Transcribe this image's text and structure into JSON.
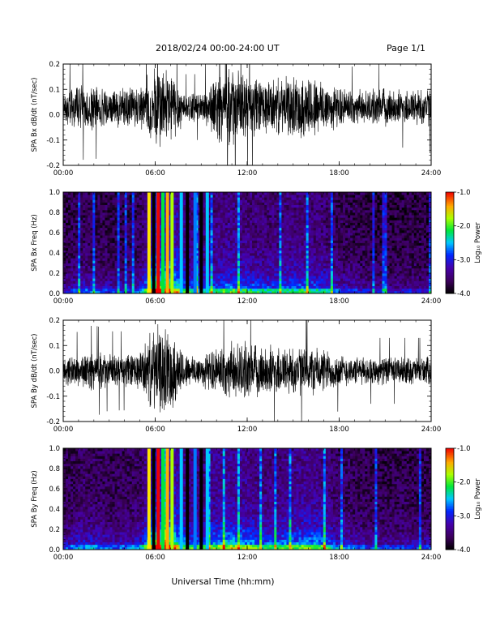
{
  "header": {
    "title": "2018/02/24  00:00-24:00 UT",
    "page": "Page 1/1"
  },
  "chart_data": [
    {
      "type": "line",
      "ylabel": "SPA Bx dB/dt (nT/sec)",
      "ylim": [
        -0.2,
        0.2
      ],
      "yticks": [
        "0.2",
        "0.1",
        "0.0",
        "-0.1",
        "-0.2"
      ],
      "xlim": [
        "00:00",
        "24:00"
      ],
      "xticks": [
        "00:00",
        "06:00",
        "12:00",
        "18:00",
        "24:00"
      ],
      "note": "dense noise-like time series centred on ~0.03, amplitude envelope by hour",
      "envelope_hours": [
        0,
        1,
        2,
        3,
        4,
        5,
        6,
        7,
        8,
        9,
        10,
        11,
        12,
        13,
        14,
        15,
        16,
        17,
        18,
        19,
        20,
        21,
        22,
        23,
        24
      ],
      "envelope_values": [
        0.06,
        0.08,
        0.08,
        0.07,
        0.07,
        0.08,
        0.16,
        0.14,
        0.05,
        0.05,
        0.12,
        0.14,
        0.12,
        0.1,
        0.1,
        0.11,
        0.12,
        0.1,
        0.07,
        0.06,
        0.06,
        0.07,
        0.06,
        0.07,
        0.07
      ],
      "baseline": 0.03
    },
    {
      "type": "heatmap",
      "ylabel": "SPA Bx Freq (Hz)",
      "ylim": [
        0.0,
        1.0
      ],
      "yticks": [
        "1.0",
        "0.8",
        "0.6",
        "0.4",
        "0.2",
        "0.0"
      ],
      "xlim": [
        "00:00",
        "24:00"
      ],
      "xticks": [
        "00:00",
        "06:00",
        "12:00",
        "18:00",
        "24:00"
      ],
      "colorbar_label": "Log₁₀ Power",
      "colorbar_range": [
        -4.0,
        -1.0
      ],
      "colorbar_ticks": [
        "-1.0",
        "-2.0",
        "-3.0",
        "-4.0"
      ],
      "activity_hours": [
        0,
        1,
        2,
        3,
        4,
        5,
        6,
        7,
        8,
        9,
        10,
        11,
        12,
        13,
        14,
        15,
        16,
        17,
        18,
        19,
        20,
        21,
        22,
        23,
        24
      ],
      "activity_values": [
        0.3,
        0.4,
        0.4,
        0.35,
        0.35,
        0.4,
        1.0,
        1.0,
        0.6,
        0.55,
        0.6,
        0.65,
        0.6,
        0.55,
        0.55,
        0.6,
        0.6,
        0.55,
        0.4,
        0.35,
        0.3,
        0.3,
        0.3,
        0.3,
        0.3
      ],
      "broadband_hours": [
        5.6,
        5.9,
        6.2,
        6.5,
        6.8,
        7.1,
        7.7,
        8.1,
        8.6,
        9.0,
        9.4
      ]
    },
    {
      "type": "line",
      "ylabel": "SPA By dB/dt (nT/sec)",
      "ylim": [
        -0.2,
        0.2
      ],
      "yticks": [
        "0.2",
        "0.1",
        "0.0",
        "-0.1",
        "-0.2"
      ],
      "xlim": [
        "00:00",
        "24:00"
      ],
      "xticks": [
        "00:00",
        "06:00",
        "12:00",
        "18:00",
        "24:00"
      ],
      "note": "dense noise-like time series centred on ~0.0, amplitude envelope by hour",
      "envelope_hours": [
        0,
        1,
        2,
        3,
        4,
        5,
        6,
        7,
        8,
        9,
        10,
        11,
        12,
        13,
        14,
        15,
        16,
        17,
        18,
        19,
        20,
        21,
        22,
        23,
        24
      ],
      "envelope_values": [
        0.05,
        0.06,
        0.07,
        0.06,
        0.06,
        0.07,
        0.16,
        0.15,
        0.06,
        0.06,
        0.08,
        0.1,
        0.1,
        0.09,
        0.09,
        0.09,
        0.09,
        0.08,
        0.06,
        0.05,
        0.05,
        0.05,
        0.05,
        0.05,
        0.05
      ],
      "baseline": 0.0
    },
    {
      "type": "heatmap",
      "ylabel": "SPA By Freq (Hz)",
      "ylim": [
        0.0,
        1.0
      ],
      "yticks": [
        "1.0",
        "0.8",
        "0.6",
        "0.4",
        "0.2",
        "0.0"
      ],
      "xlim": [
        "00:00",
        "24:00"
      ],
      "xticks": [
        "00:00",
        "06:00",
        "12:00",
        "18:00",
        "24:00"
      ],
      "colorbar_label": "Log₁₀ Power",
      "colorbar_range": [
        -4.0,
        -1.0
      ],
      "colorbar_ticks": [
        "-1.0",
        "-2.0",
        "-3.0",
        "-4.0"
      ],
      "activity_hours": [
        0,
        1,
        2,
        3,
        4,
        5,
        6,
        7,
        8,
        9,
        10,
        11,
        12,
        13,
        14,
        15,
        16,
        17,
        18,
        19,
        20,
        21,
        22,
        23,
        24
      ],
      "activity_values": [
        0.35,
        0.45,
        0.45,
        0.4,
        0.4,
        0.45,
        1.0,
        1.0,
        0.65,
        0.6,
        0.7,
        0.75,
        0.7,
        0.6,
        0.6,
        0.65,
        0.7,
        0.65,
        0.45,
        0.4,
        0.35,
        0.35,
        0.35,
        0.35,
        0.35
      ],
      "broadband_hours": [
        5.6,
        5.9,
        6.2,
        6.5,
        6.8,
        7.1,
        7.7,
        8.1,
        8.6,
        9.0,
        9.4
      ]
    }
  ],
  "xlabel": "Universal Time (hh:mm)"
}
